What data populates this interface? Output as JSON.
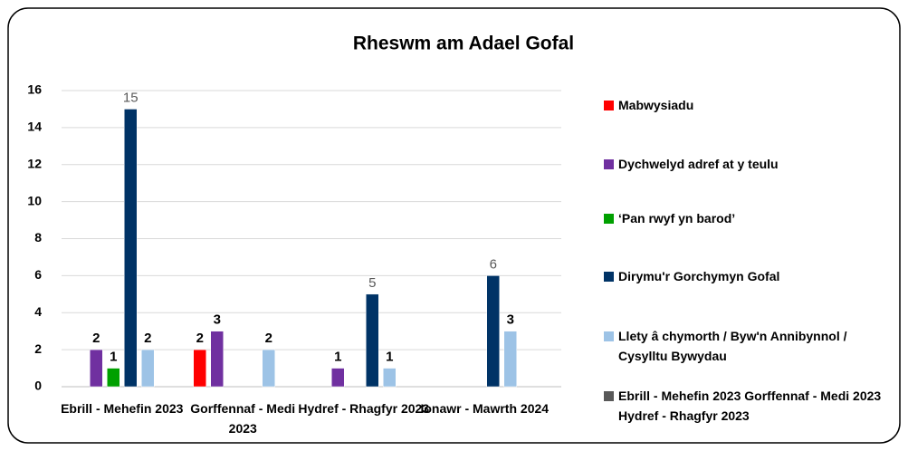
{
  "chart_data": {
    "type": "bar",
    "title": "Rheswm am Adael Gofal",
    "categories": [
      "Ebrill - Mehefin 2023",
      "Gorffennaf - Medi 2023",
      "Hydref - Rhagfyr 2023",
      "Ionawr - Mawrth 2024"
    ],
    "series": [
      {
        "name": "Mabwysiadu",
        "color": "#ff0000",
        "label_color": "#000000",
        "values": [
          null,
          2,
          null,
          null
        ]
      },
      {
        "name": "Dychwelyd adref at y teulu",
        "color": "#7030a0",
        "label_color": "#000000",
        "values": [
          2,
          3,
          1,
          null
        ]
      },
      {
        "name": "‘Pan rwyf yn barod’",
        "color": "#00a000",
        "label_color": "#000000",
        "values": [
          1,
          null,
          null,
          null
        ]
      },
      {
        "name": "Dirymu'r Gorchymyn Gofal",
        "color": "#003366",
        "label_color": "#595959",
        "values": [
          15,
          null,
          5,
          6
        ]
      },
      {
        "name": "Llety â chymorth / Byw'n Annibynnol / Cysylltu Bywydau",
        "color": "#9dc3e6",
        "label_color": "#000000",
        "values": [
          2,
          2,
          1,
          3
        ]
      },
      {
        "name": "Ebrill - Mehefin 2023 Gorffennaf - Medi 2023 Hydref - Rhagfyr 2023",
        "color": "#595959",
        "label_color": "#000000",
        "values": [
          null,
          null,
          null,
          null
        ]
      }
    ],
    "ylim": [
      0,
      16
    ],
    "yticks": [
      0,
      2,
      4,
      6,
      8,
      10,
      12,
      14,
      16
    ],
    "grid": true,
    "legend": "right"
  }
}
